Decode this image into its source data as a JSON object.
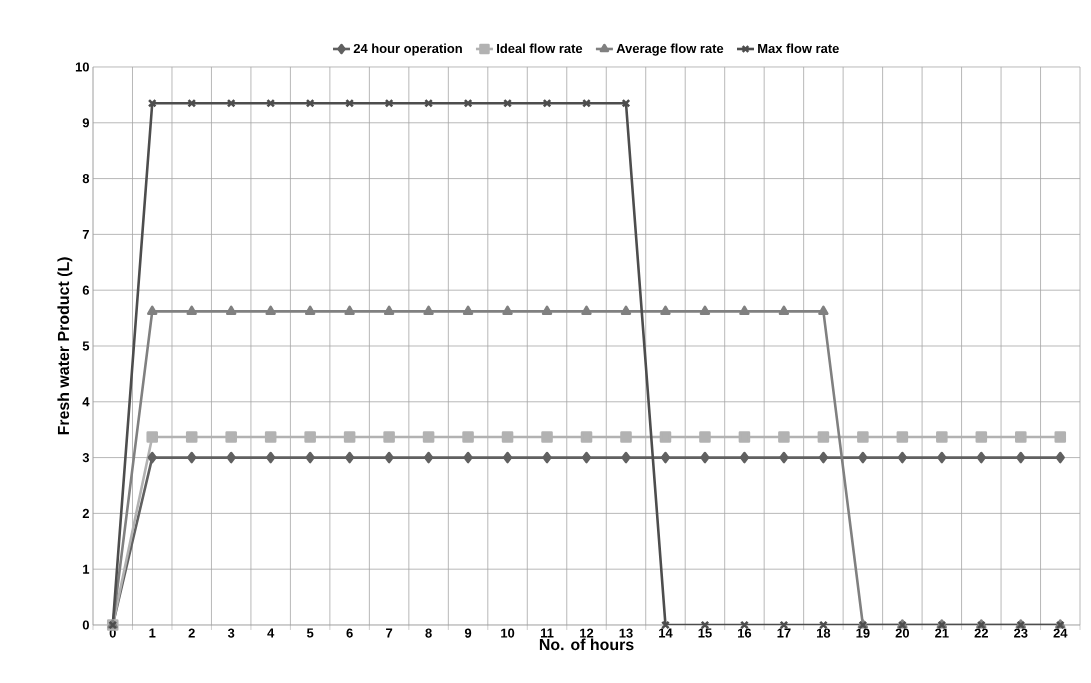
{
  "chart_data": {
    "type": "line",
    "xlabel": "No. of hours",
    "ylabel": "Fresh water Product (L)",
    "categories": [
      "0",
      "1",
      "2",
      "3",
      "4",
      "5",
      "6",
      "7",
      "8",
      "9",
      "10",
      "11",
      "12",
      "13",
      "14",
      "15",
      "16",
      "17",
      "18",
      "19",
      "20",
      "21",
      "22",
      "23",
      "24"
    ],
    "series": [
      {
        "name": "24 hour operation",
        "color": "#606060",
        "marker": "diamond",
        "values": [
          0,
          3,
          3,
          3,
          3,
          3,
          3,
          3,
          3,
          3,
          3,
          3,
          3,
          3,
          3,
          3,
          3,
          3,
          3,
          3,
          3,
          3,
          3,
          3,
          3
        ]
      },
      {
        "name": "Ideal flow rate",
        "color": "#b2b2b2",
        "marker": "square",
        "values": [
          0,
          3.37,
          3.37,
          3.37,
          3.37,
          3.37,
          3.37,
          3.37,
          3.37,
          3.37,
          3.37,
          3.37,
          3.37,
          3.37,
          3.37,
          3.37,
          3.37,
          3.37,
          3.37,
          3.37,
          3.37,
          3.37,
          3.37,
          3.37,
          3.37
        ]
      },
      {
        "name": "Average flow rate",
        "color": "#808080",
        "marker": "triangle",
        "values": [
          0,
          5.62,
          5.62,
          5.62,
          5.62,
          5.62,
          5.62,
          5.62,
          5.62,
          5.62,
          5.62,
          5.62,
          5.62,
          5.62,
          5.62,
          5.62,
          5.62,
          5.62,
          5.62,
          0,
          0,
          0,
          0,
          0,
          0
        ]
      },
      {
        "name": "Max flow rate",
        "color": "#4d4d4d",
        "marker": "cross",
        "values": [
          0,
          9.35,
          9.35,
          9.35,
          9.35,
          9.35,
          9.35,
          9.35,
          9.35,
          9.35,
          9.35,
          9.35,
          9.35,
          9.35,
          0,
          0,
          0,
          0,
          0,
          0,
          0,
          0,
          0,
          0,
          0
        ]
      }
    ],
    "ylim": [
      0,
      10
    ],
    "yticks": [
      0,
      1,
      2,
      3,
      4,
      5,
      6,
      7,
      8,
      9,
      10
    ],
    "grid": true,
    "legend": "top",
    "line_style": "solid"
  }
}
